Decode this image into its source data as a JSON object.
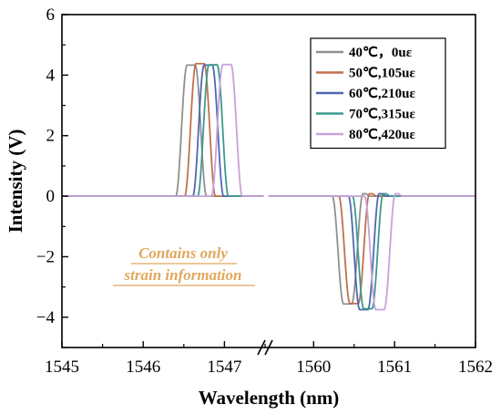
{
  "chart_data": {
    "type": "line",
    "xlabel": "Wavelength (nm)",
    "ylabel": "Intensity (V)",
    "ylim": [
      -5,
      6
    ],
    "y_ticks": [
      6,
      4,
      2,
      0,
      -2,
      -4
    ],
    "y_tick_labels": [
      "6",
      "4",
      "2",
      "0",
      "−2",
      "−4"
    ],
    "x_break": true,
    "x_segments": [
      {
        "range": [
          1545,
          1547.5
        ],
        "ticks": [
          1545,
          1546,
          1547
        ],
        "tick_labels": [
          "1545",
          "1546",
          "1547"
        ]
      },
      {
        "range": [
          1559.4,
          1562
        ],
        "ticks": [
          1560,
          1561,
          1562
        ],
        "tick_labels": [
          "1560",
          "1561",
          "1562"
        ]
      }
    ],
    "legend_position": "top-right",
    "grid": false,
    "series": [
      {
        "name": "40℃，0uε",
        "color": "#909090",
        "peak_center": 1546.59,
        "peak_value": 4.33,
        "dip_center": 1560.42,
        "dip_value": -3.56
      },
      {
        "name": "50℃,105uε",
        "color": "#c1704e",
        "peak_center": 1546.7,
        "peak_value": 4.38,
        "dip_center": 1560.5,
        "dip_value": -3.55
      },
      {
        "name": "60℃,210uε",
        "color": "#5067b0",
        "peak_center": 1546.8,
        "peak_value": 4.33,
        "dip_center": 1560.62,
        "dip_value": -3.75
      },
      {
        "name": "70℃,315uε",
        "color": "#3c9a8e",
        "peak_center": 1546.86,
        "peak_value": 4.34,
        "dip_center": 1560.67,
        "dip_value": -3.72
      },
      {
        "name": "80℃,420uε",
        "color": "#c7a2d9",
        "peak_center": 1547.03,
        "peak_value": 4.35,
        "dip_center": 1560.82,
        "dip_value": -3.75
      }
    ],
    "annotation": {
      "lines": [
        "Contains only",
        "strain information"
      ],
      "color": "#e0a85c"
    }
  }
}
